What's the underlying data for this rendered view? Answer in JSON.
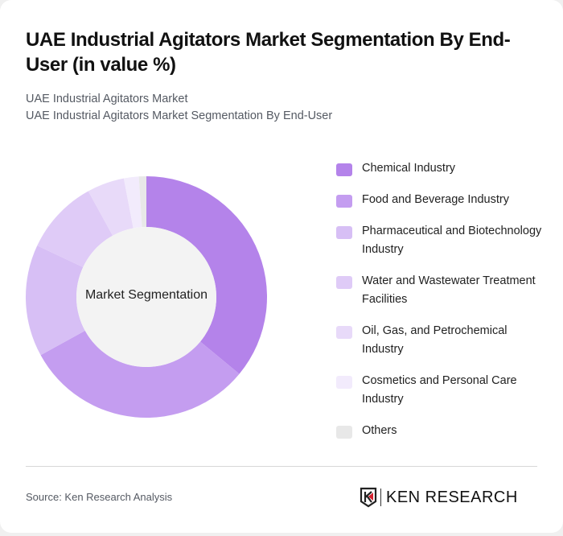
{
  "header": {
    "title": "UAE Industrial Agitators Market Segmentation By End-User (in value %)",
    "subtitle_line1": "UAE Industrial Agitators Market",
    "subtitle_line2": "UAE Industrial Agitators Market Segmentation By End-User"
  },
  "chart": {
    "center_label": "Market Segmentation"
  },
  "legend": [
    {
      "label": "Chemical Industry",
      "color": "#b483ea"
    },
    {
      "label": "Food and Beverage Industry",
      "color": "#c49df0"
    },
    {
      "label": "Pharmaceutical and Biotechnology Industry",
      "color": "#d7bff5"
    },
    {
      "label": "Water and Wastewater Treatment Facilities",
      "color": "#dfcbf7"
    },
    {
      "label": "Oil, Gas, and Petrochemical Industry",
      "color": "#e8daf9"
    },
    {
      "label": "Cosmetics and Personal Care Industry",
      "color": "#f2ebfc"
    },
    {
      "label": "Others",
      "color": "#e8e8e8"
    }
  ],
  "footer": {
    "source": "Source: Ken Research Analysis",
    "logo_text": "KEN RESEARCH"
  },
  "chart_data": {
    "type": "pie",
    "title": "UAE Industrial Agitators Market Segmentation By End-User (in value %)",
    "subtitle": "UAE Industrial Agitators Market Segmentation By End-User",
    "center_label": "Market Segmentation",
    "categories": [
      "Chemical Industry",
      "Food and Beverage Industry",
      "Pharmaceutical and Biotechnology Industry",
      "Water and Wastewater Treatment Facilities",
      "Oil, Gas, and Petrochemical Industry",
      "Cosmetics and Personal Care Industry",
      "Others"
    ],
    "values": [
      36,
      31,
      15,
      10,
      5,
      2,
      1
    ],
    "colors": [
      "#b483ea",
      "#c49df0",
      "#d7bff5",
      "#dfcbf7",
      "#e8daf9",
      "#f2ebfc",
      "#e8e8e8"
    ],
    "donut": true,
    "legend_position": "right"
  }
}
